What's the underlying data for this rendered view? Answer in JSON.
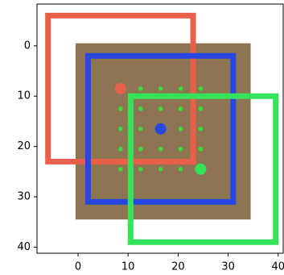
{
  "chart_data": {
    "type": "overlay",
    "xlim": [
      -8.2,
      41
    ],
    "ylim": [
      41.2,
      -8.3
    ],
    "xticks": [
      0,
      10,
      20,
      30,
      40
    ],
    "yticks": [
      0,
      10,
      20,
      30,
      40
    ],
    "image": {
      "color": "#8d7452",
      "x": [
        -0.5,
        34.5
      ],
      "y": [
        -0.5,
        34.5
      ]
    },
    "rectangles": [
      {
        "color": "#e8604a",
        "x": [
          -6,
          23
        ],
        "y": [
          -6,
          23
        ]
      },
      {
        "color": "#2748e0",
        "x": [
          2,
          31
        ],
        "y": [
          2,
          31
        ]
      },
      {
        "color": "#35e35a",
        "x": [
          10.5,
          39.5
        ],
        "y": [
          10,
          39
        ]
      }
    ],
    "grid_points": {
      "color": "#3ddc3d",
      "x": [
        8.5,
        12.5,
        16.5,
        20.5,
        24.5,
        8.5,
        12.5,
        16.5,
        20.5,
        24.5,
        8.5,
        12.5,
        16.5,
        20.5,
        24.5,
        8.5,
        12.5,
        16.5,
        20.5,
        24.5,
        8.5,
        12.5,
        16.5,
        20.5,
        24.5
      ],
      "y": [
        8.5,
        8.5,
        8.5,
        8.5,
        8.5,
        12.5,
        12.5,
        12.5,
        12.5,
        12.5,
        16.5,
        16.5,
        16.5,
        16.5,
        16.5,
        20.5,
        20.5,
        20.5,
        20.5,
        20.5,
        24.5,
        24.5,
        24.5,
        24.5,
        24.5
      ]
    },
    "points": [
      {
        "color": "#e8604a",
        "x": 8.5,
        "y": 8.5
      },
      {
        "color": "#2748e0",
        "x": 16.5,
        "y": 16.5
      },
      {
        "color": "#35e35a",
        "x": 24.5,
        "y": 24.5
      }
    ]
  }
}
